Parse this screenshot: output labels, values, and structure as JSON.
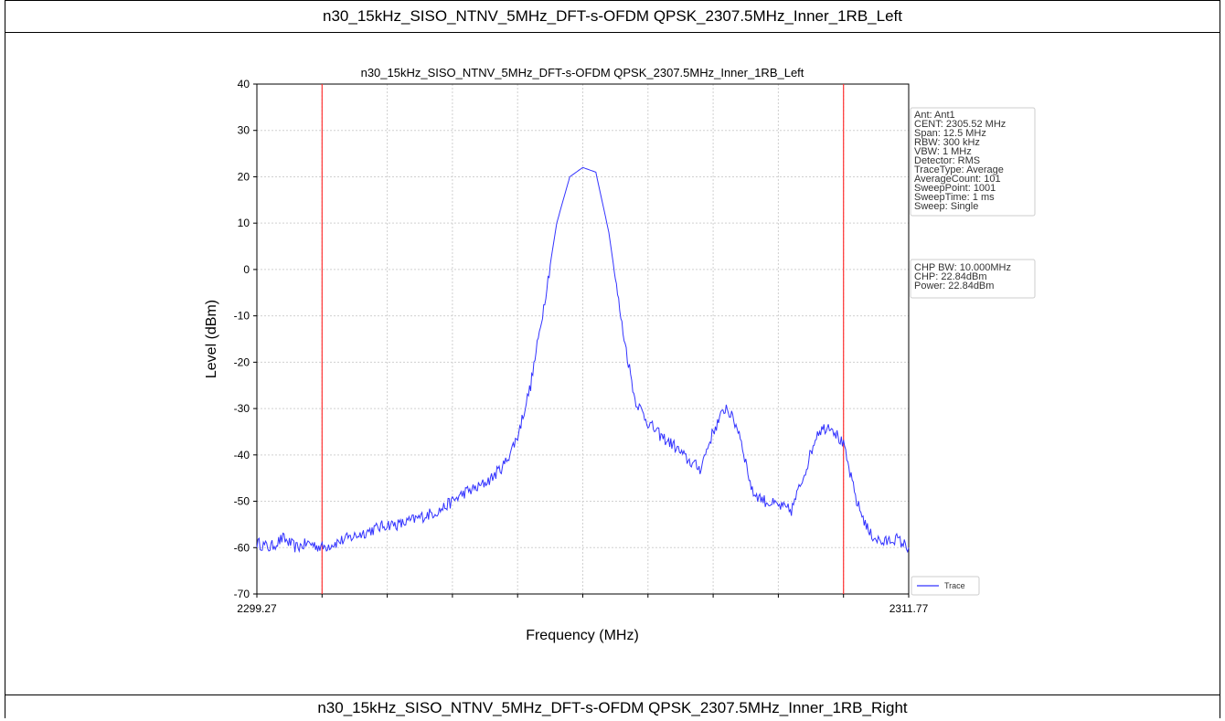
{
  "header": {
    "title": "n30_15kHz_SISO_NTNV_5MHz_DFT-s-OFDM QPSK_2307.5MHz_Inner_1RB_Left"
  },
  "footer": {
    "title": "n30_15kHz_SISO_NTNV_5MHz_DFT-s-OFDM QPSK_2307.5MHz_Inner_1RB_Right"
  },
  "info_box": {
    "lines": [
      "Ant: Ant1",
      "CENT: 2305.52 MHz",
      "Span: 12.5 MHz",
      "RBW: 300 kHz",
      "VBW: 1 MHz",
      "Detector: RMS",
      "TraceType: Average",
      "AverageCount: 101",
      "SweepPoint: 1001",
      "SweepTime: 1 ms",
      "Sweep: Single"
    ]
  },
  "power_box": {
    "lines": [
      "CHP BW: 10.000MHz",
      "CHP: 22.84dBm",
      "Power: 22.84dBm"
    ]
  },
  "chart_data": {
    "type": "line",
    "title": "n30_15kHz_SISO_NTNV_5MHz_DFT-s-OFDM QPSK_2307.5MHz_Inner_1RB_Left",
    "xlabel": "Frequency (MHz)",
    "ylabel": "Level (dBm)",
    "xlim": [
      2299.27,
      2311.77
    ],
    "ylim": [
      -70,
      40
    ],
    "x_tick_labels": [
      "2299.27",
      "2311.77"
    ],
    "y_ticks": [
      40,
      30,
      20,
      10,
      0,
      -10,
      -20,
      -30,
      -40,
      -50,
      -60,
      -70
    ],
    "grid": true,
    "legend": {
      "position": "bottom-right",
      "entries": [
        "Trace"
      ]
    },
    "colors": {
      "trace": "#3333ff",
      "markers": "#ff3333"
    },
    "vertical_markers": [
      2300.52,
      2310.52
    ],
    "series": [
      {
        "name": "Trace",
        "x": [
          2299.27,
          2299.52,
          2299.77,
          2300.02,
          2300.27,
          2300.52,
          2300.77,
          2301.02,
          2301.27,
          2301.52,
          2301.77,
          2302.02,
          2302.27,
          2302.52,
          2302.77,
          2303.02,
          2303.27,
          2303.52,
          2303.77,
          2304.02,
          2304.27,
          2304.52,
          2304.77,
          2305.02,
          2305.27,
          2305.52,
          2305.77,
          2306.02,
          2306.27,
          2306.52,
          2306.77,
          2307.02,
          2307.27,
          2307.52,
          2307.77,
          2308.02,
          2308.27,
          2308.52,
          2308.77,
          2309.02,
          2309.27,
          2309.52,
          2309.77,
          2310.02,
          2310.27,
          2310.52,
          2310.77,
          2311.02,
          2311.27,
          2311.52,
          2311.77
        ],
        "values": [
          -59,
          -60,
          -58,
          -60,
          -59,
          -60,
          -59,
          -58,
          -57,
          -56,
          -55,
          -55,
          -54,
          -53,
          -52,
          -50,
          -48,
          -47,
          -45,
          -42,
          -36,
          -25,
          -8,
          10,
          20,
          22,
          21,
          8,
          -12,
          -28,
          -33,
          -36,
          -38,
          -41,
          -43,
          -35,
          -29.5,
          -35,
          -48,
          -50,
          -51,
          -52,
          -44,
          -35,
          -33.5,
          -38,
          -50,
          -57,
          -59,
          -58,
          -60
        ]
      }
    ]
  }
}
